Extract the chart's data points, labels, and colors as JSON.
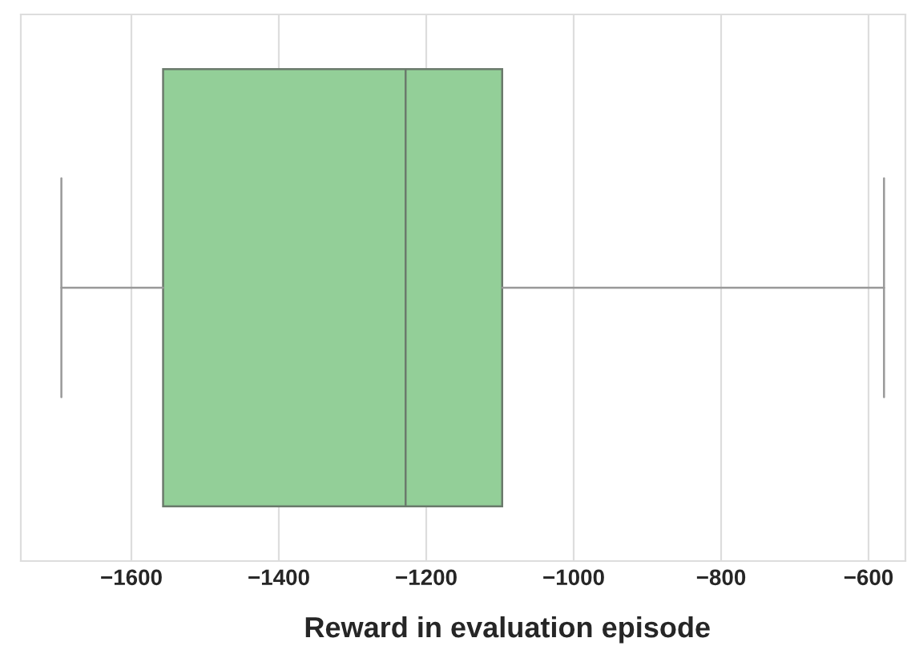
{
  "chart_data": {
    "type": "box",
    "orientation": "horizontal",
    "xlabel": "Reward in evaluation episode",
    "categories": [
      null
    ],
    "color": "#93cf98",
    "boxes": [
      {
        "low": -1695,
        "q1": -1557,
        "median": -1228,
        "q3": -1097,
        "high": -579
      }
    ],
    "xlim": [
      -1750,
      -550
    ],
    "xticks": [
      -1600,
      -1400,
      -1200,
      -1000,
      -800,
      -600
    ],
    "grid": "x",
    "tick_labels": "x"
  }
}
